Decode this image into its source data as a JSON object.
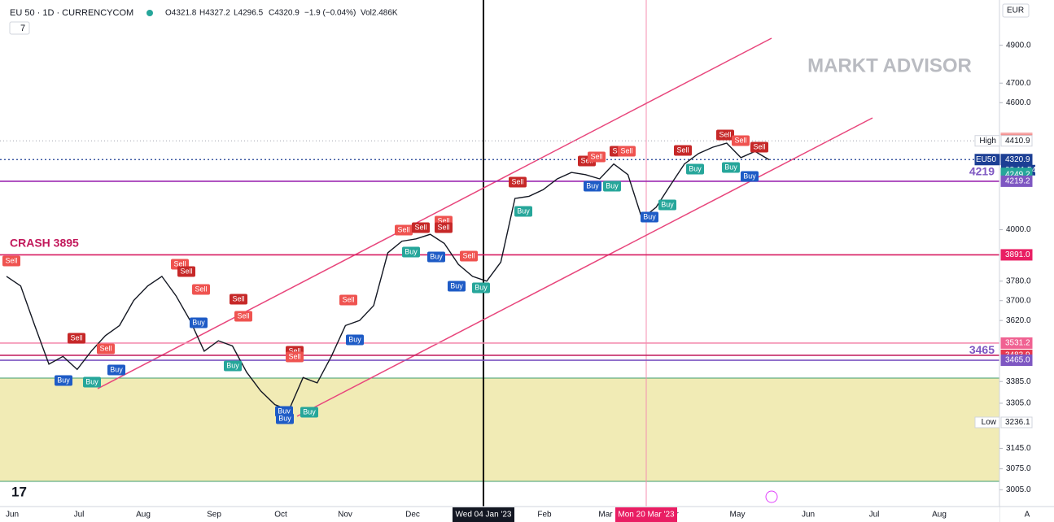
{
  "header": {
    "title": "EU 50 · 1D · CURRENCYCOM",
    "ohlc": [
      "O4321.8",
      "H4327.2",
      "L4296.5",
      "C4320.9"
    ],
    "change": "−1.9 (−0.04%)",
    "volume": "Vol2.486K",
    "indicator_count": "7"
  },
  "currency": "EUR",
  "watermark": "MARKT ADVISOR",
  "chart_data": {
    "type": "line",
    "color": "#131722",
    "log_scale": true,
    "ylim": [
      2950,
      5150
    ],
    "yticks": [
      {
        "value": 4900,
        "label": "4900.0"
      },
      {
        "value": 4700,
        "label": "4700.0"
      },
      {
        "value": 4600,
        "label": "4600.0"
      },
      {
        "value": 4000,
        "label": "4000.0"
      },
      {
        "value": 3780,
        "label": "3780.0"
      },
      {
        "value": 3700,
        "label": "3700.0"
      },
      {
        "value": 3620,
        "label": "3620.0"
      },
      {
        "value": 3385,
        "label": "3385.0"
      },
      {
        "value": 3305,
        "label": "3305.0"
      },
      {
        "value": 3145,
        "label": "3145.0"
      },
      {
        "value": 3075,
        "label": "3075.0"
      },
      {
        "value": 3005,
        "label": "3005.0"
      }
    ],
    "values": [
      3800,
      3760,
      3600,
      3450,
      3480,
      3430,
      3500,
      3560,
      3600,
      3700,
      3760,
      3800,
      3720,
      3620,
      3500,
      3540,
      3520,
      3420,
      3350,
      3300,
      3280,
      3400,
      3380,
      3480,
      3600,
      3620,
      3680,
      3900,
      3950,
      3960,
      3980,
      3940,
      3850,
      3800,
      3780,
      3860,
      4140,
      4150,
      4180,
      4230,
      4260,
      4250,
      4230,
      4300,
      4250,
      4050,
      4100,
      4200,
      4300,
      4350,
      4380,
      4400,
      4330,
      4360,
      4320
    ],
    "price_tags": [
      {
        "value": 4423.4,
        "label": "4423.4"
      },
      {
        "value": 4413.7,
        "label": "4413.7"
      },
      {
        "value": 4410.9,
        "label": "4410.9",
        "caption": "High"
      },
      {
        "value": 4320.9,
        "label": "4320.9",
        "caption": "EU50",
        "countdown": "08:11:54"
      },
      {
        "value": 4256.0,
        "label": "4256.0"
      },
      {
        "value": 4249.2,
        "label": "4249.2"
      },
      {
        "value": 4219.2,
        "label": "4219.2"
      },
      {
        "value": 3891.0,
        "label": "3891.0"
      },
      {
        "value": 3531.2,
        "label": "3531.2"
      },
      {
        "value": 3483.9,
        "label": "3483.9"
      },
      {
        "value": 3465.0,
        "label": "3465.0"
      },
      {
        "value": 3236.1,
        "label": "3236.1",
        "caption": "Low"
      }
    ],
    "annotations": [
      "4219",
      "3465",
      "CRASH 3895"
    ]
  },
  "time_axis": [
    "Jun",
    "Jul",
    "Aug",
    "Sep",
    "Oct",
    "Nov",
    "Dec",
    "Feb",
    "Mar",
    "r",
    "May",
    "Jun",
    "Jul",
    "Aug",
    "A"
  ],
  "crosshair_dates": [
    "Wed 04 Jan '23",
    "Mon 20 Mar '23"
  ],
  "signals": [
    "Sell",
    "Sell",
    "Sell",
    "Buy",
    "Buy",
    "Buy",
    "Sell",
    "Sell",
    "Sell",
    "Sell",
    "Sell",
    "Buy",
    "Buy",
    "Sell",
    "Sell",
    "Buy",
    "Buy",
    "Buy",
    "Sell",
    "Buy",
    "Sell",
    "Sell",
    "Sell",
    "Sell",
    "Buy",
    "Buy",
    "Sell",
    "Buy",
    "Buy",
    "Sell",
    "Buy",
    "Sell",
    "Sell",
    "Sell",
    "Sell",
    "Buy",
    "Buy",
    "Buy",
    "Buy",
    "Sell",
    "Buy",
    "Sell",
    "Sell",
    "Sell",
    "Buy",
    "Buy"
  ]
}
